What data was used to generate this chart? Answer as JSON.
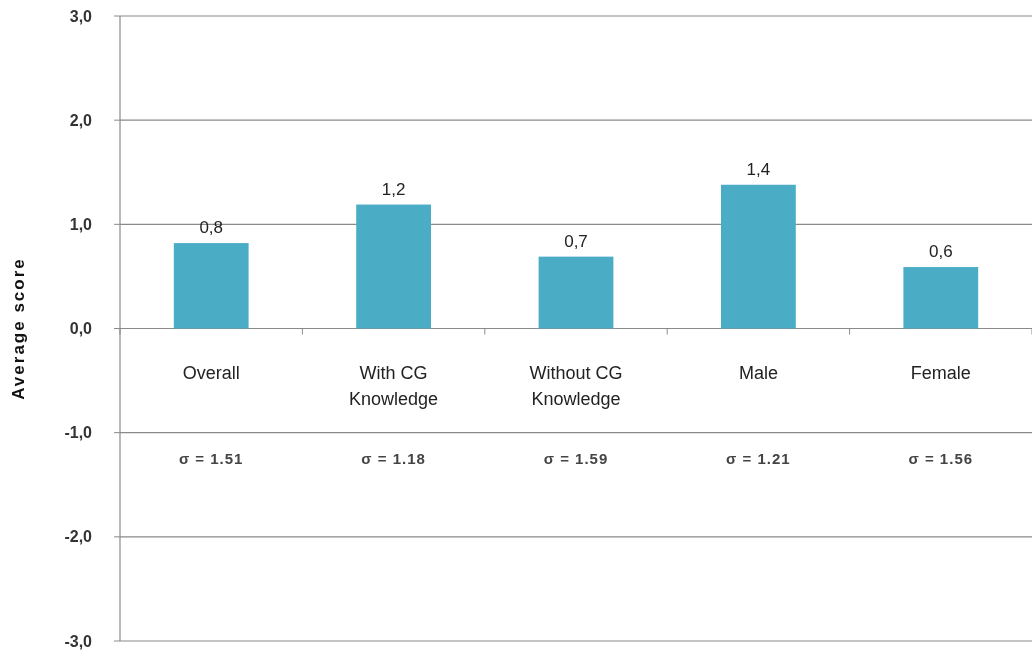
{
  "chart_data": {
    "type": "bar",
    "ylabel": "Average score",
    "categories": [
      "Overall",
      "With CG Knowledge",
      "Without CG Knowledge",
      "Male",
      "Female"
    ],
    "values": [
      0.82,
      1.19,
      0.69,
      1.38,
      0.59
    ],
    "value_labels": [
      "0,8",
      "1,2",
      "0,7",
      "1,4",
      "0,6"
    ],
    "color": "#4bacc6",
    "ylim": [
      -3,
      3
    ],
    "yticks": [
      {
        "value": -3,
        "label": "-3,0"
      },
      {
        "value": -2,
        "label": "-2,0"
      },
      {
        "value": -1,
        "label": "-1,0"
      },
      {
        "value": 0,
        "label": "0,0"
      },
      {
        "value": 1,
        "label": "1,0"
      },
      {
        "value": 2,
        "label": "2,0"
      },
      {
        "value": 3,
        "label": "3,0"
      }
    ],
    "grid": true,
    "annotations": [
      "σ = 1.51",
      "σ = 1.18",
      "σ = 1.59",
      "σ = 1.21",
      "σ = 1.56"
    ]
  }
}
